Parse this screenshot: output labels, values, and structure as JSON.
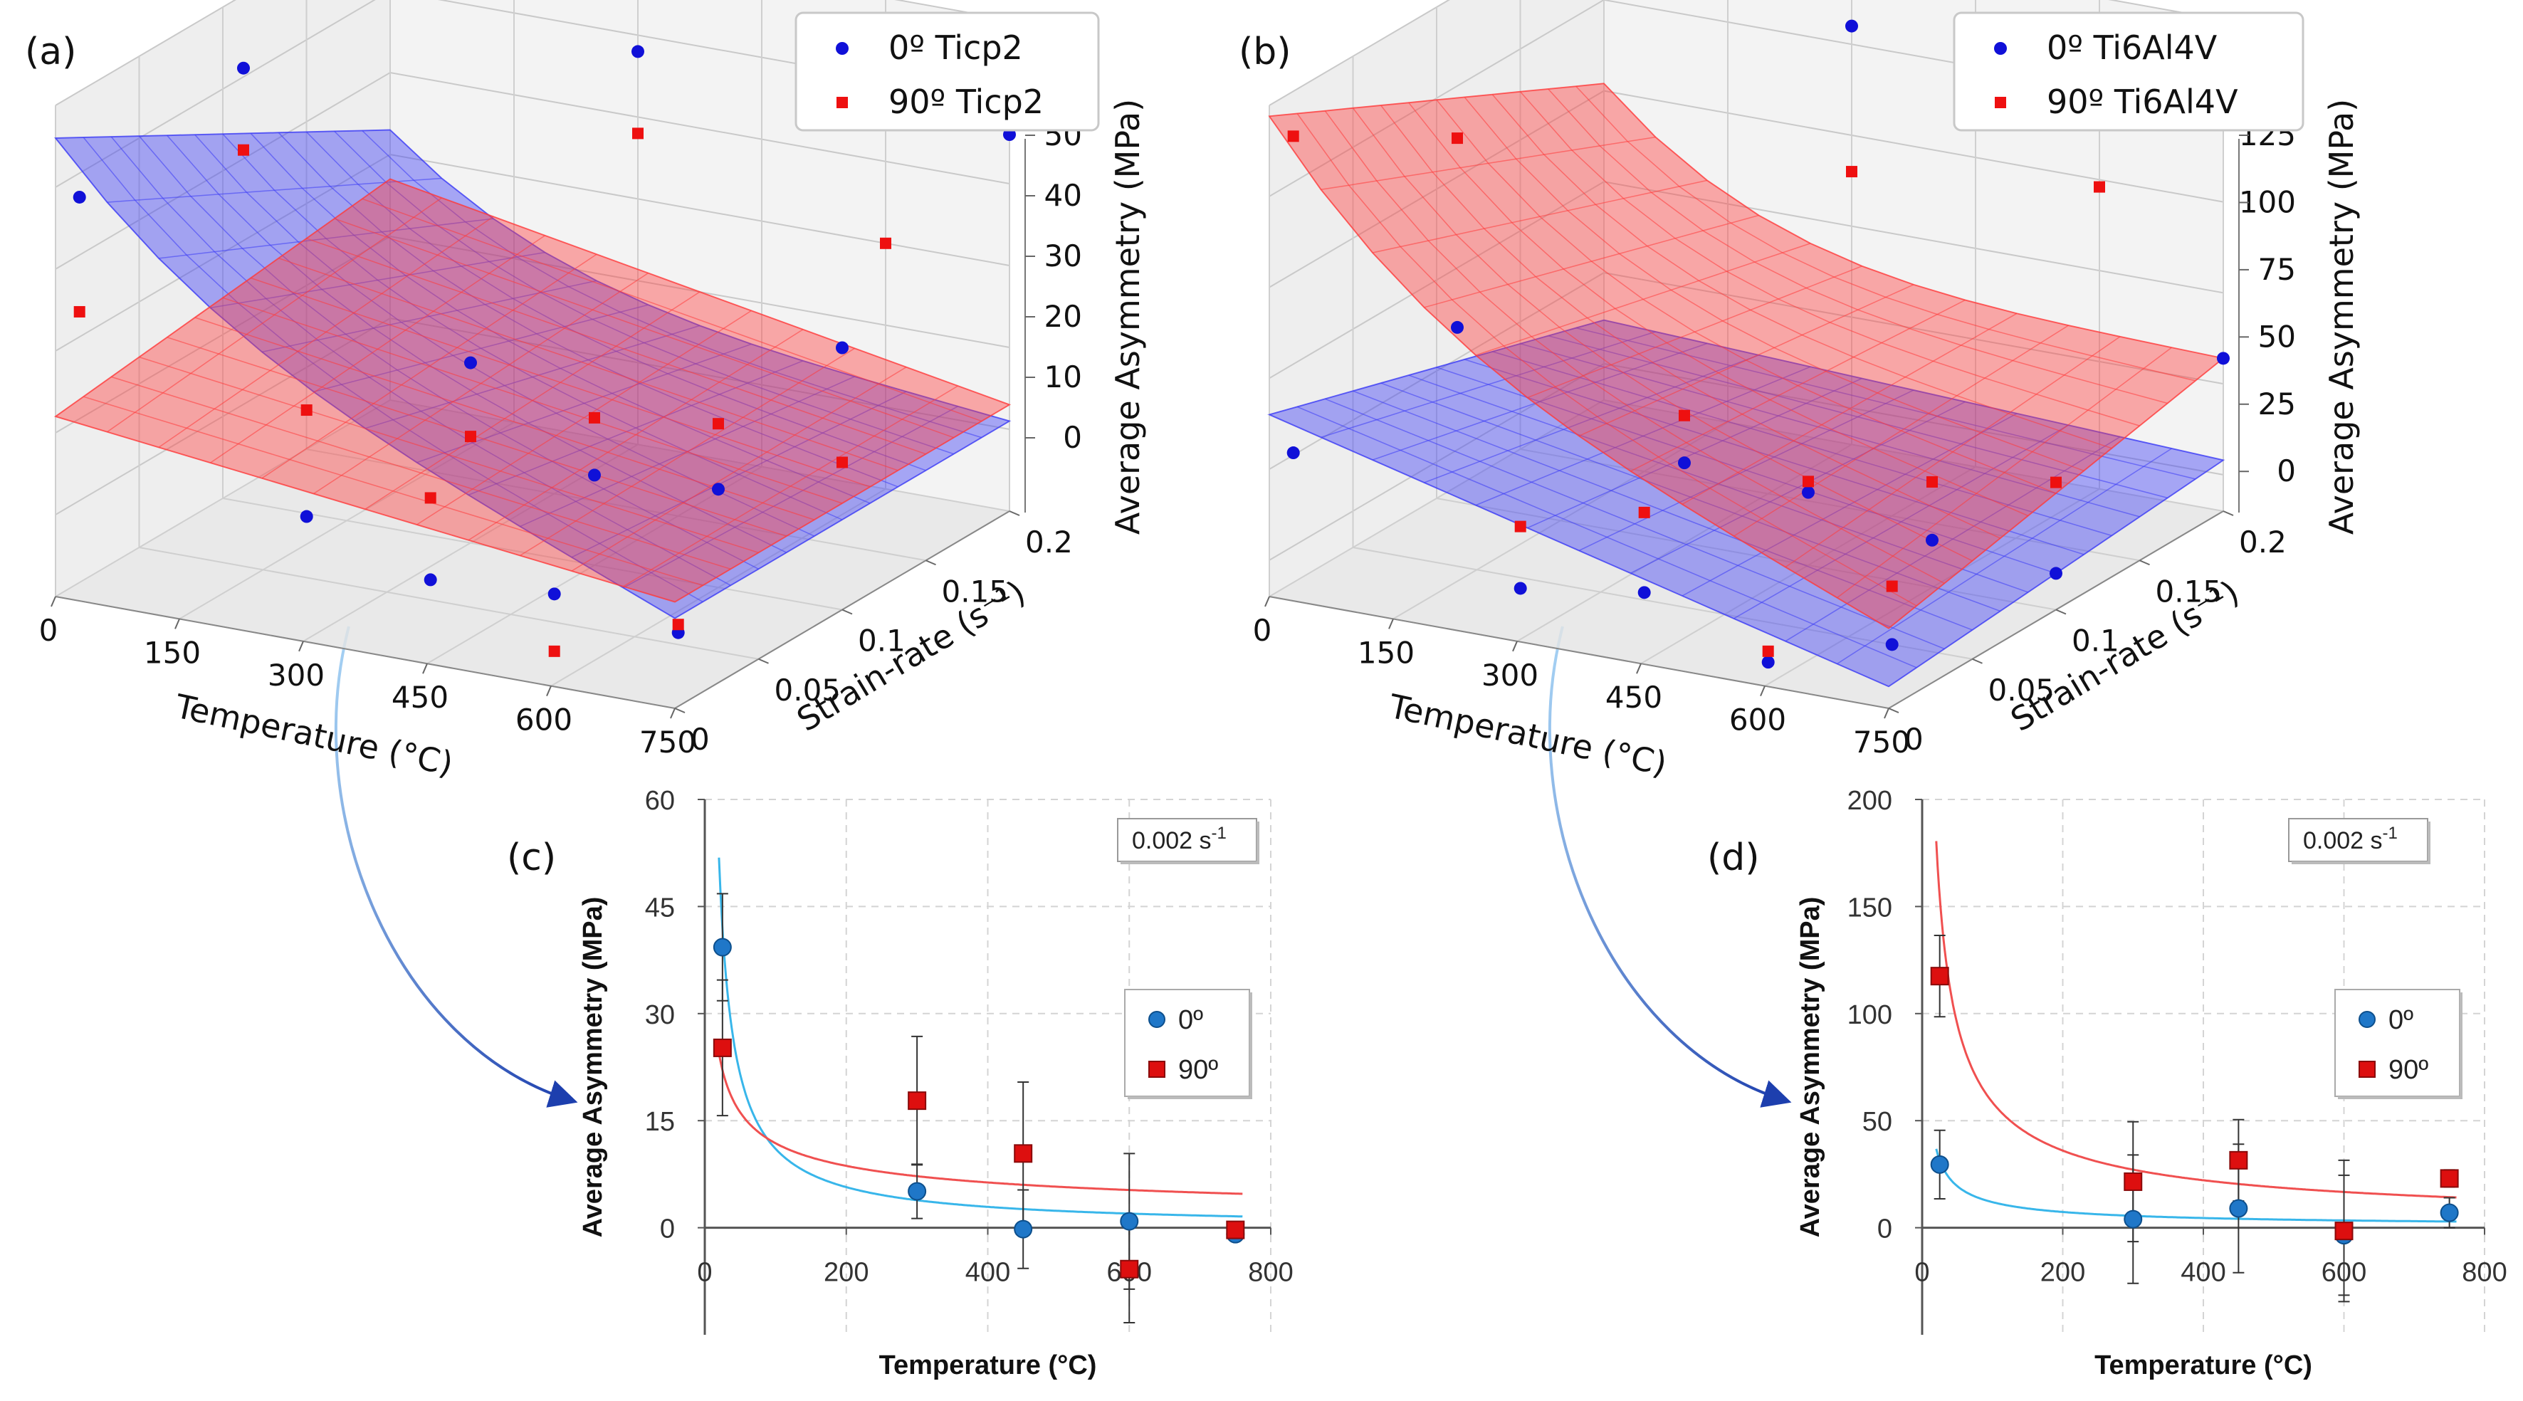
{
  "panels": {
    "a": {
      "letter": "(a)"
    },
    "b": {
      "letter": "(b)"
    },
    "c": {
      "letter": "(c)"
    },
    "d": {
      "letter": "(d)"
    }
  },
  "chart_data": [
    {
      "id": "a",
      "type": "scatter",
      "subtype": "3d surface with scatter points",
      "title": "",
      "xlabel": "Temperature (°C)",
      "ylabel": "Strain-rate (s⁻¹)",
      "zlabel": "Average Asymmetry (MPa)",
      "xticks": [
        "0",
        "150",
        "300",
        "450",
        "600",
        "750"
      ],
      "yticks": [
        "0",
        "0.05",
        "0.1",
        "0.15",
        "0.2"
      ],
      "zticks": [
        "0",
        "10",
        "20",
        "30",
        "40",
        "50"
      ],
      "xlim": [
        0,
        750
      ],
      "ylim": [
        0,
        0.2
      ],
      "zlim": [
        -10,
        50
      ],
      "legend": {
        "position": "top-right",
        "entries": [
          "0º Ticp2",
          "90º Ticp2"
        ]
      },
      "series": [
        {
          "name": "0º Ticp2",
          "color": "#1010d8",
          "marker": "circle",
          "points": [
            [
              25,
              0.002,
              39
            ],
            [
              300,
              0.002,
              5
            ],
            [
              450,
              0.002,
              0
            ],
            [
              600,
              0.002,
              1
            ],
            [
              750,
              0.002,
              -1
            ],
            [
              25,
              0.1,
              43
            ],
            [
              300,
              0.1,
              12
            ],
            [
              450,
              0.1,
              1
            ],
            [
              600,
              0.1,
              2
            ],
            [
              750,
              0.1,
              22
            ],
            [
              300,
              0.2,
              38
            ],
            [
              750,
              0.2,
              36
            ]
          ]
        },
        {
          "name": "90º Ticp2",
          "color": "#ee1010",
          "marker": "square",
          "points": [
            [
              25,
              0.002,
              25
            ],
            [
              300,
              0.002,
              18
            ],
            [
              450,
              0.002,
              10
            ],
            [
              600,
              0.002,
              -6
            ],
            [
              750,
              0.002,
              0
            ],
            [
              25,
              0.1,
              33
            ],
            [
              300,
              0.1,
              3
            ],
            [
              450,
              0.1,
              8
            ],
            [
              600,
              0.1,
              10
            ],
            [
              750,
              0.1,
              8
            ],
            [
              300,
              0.2,
              28
            ],
            [
              600,
              0.2,
              20
            ],
            [
              750,
              0.2,
              49
            ]
          ]
        }
      ]
    },
    {
      "id": "b",
      "type": "scatter",
      "subtype": "3d surface with scatter points",
      "title": "",
      "xlabel": "Temperature (°C)",
      "ylabel": "Strain-rate (s⁻¹)",
      "zlabel": "Average Asymmetry (MPa)",
      "xticks": [
        "0",
        "150",
        "300",
        "450",
        "600",
        "750"
      ],
      "yticks": [
        "0",
        "0.05",
        "0.1",
        "0.15",
        "0.2"
      ],
      "zticks": [
        "0",
        "25",
        "50",
        "75",
        "100",
        "125"
      ],
      "xlim": [
        0,
        750
      ],
      "ylim": [
        0,
        0.2
      ],
      "zlim": [
        -10,
        125
      ],
      "legend": {
        "position": "top-right",
        "entries": [
          "0º Ti6Al4V",
          "90º Ti6Al4V"
        ]
      },
      "series": [
        {
          "name": "0º Ti6Al4V",
          "color": "#1010d8",
          "marker": "circle",
          "points": [
            [
              25,
              0.002,
              30
            ],
            [
              300,
              0.002,
              4
            ],
            [
              450,
              0.002,
              9
            ],
            [
              600,
              0.002,
              -4
            ],
            [
              750,
              0.002,
              7
            ],
            [
              25,
              0.1,
              38
            ],
            [
              300,
              0.1,
              12
            ],
            [
              450,
              0.1,
              10
            ],
            [
              600,
              0.1,
              3
            ],
            [
              750,
              0.1,
              0
            ],
            [
              300,
              0.2,
              105
            ],
            [
              750,
              0.2,
              32
            ]
          ]
        },
        {
          "name": "90º Ti6Al4V",
          "color": "#ee1010",
          "marker": "square",
          "points": [
            [
              25,
              0.002,
              117
            ],
            [
              300,
              0.002,
              21
            ],
            [
              450,
              0.002,
              31
            ],
            [
              600,
              0.002,
              -1
            ],
            [
              750,
              0.002,
              23
            ],
            [
              25,
              0.1,
              90
            ],
            [
              300,
              0.1,
              25
            ],
            [
              450,
              0.1,
              13
            ],
            [
              600,
              0.1,
              19
            ],
            [
              750,
              0.1,
              25
            ],
            [
              300,
              0.2,
              65
            ],
            [
              600,
              0.2,
              73
            ],
            [
              750,
              0.2,
              112
            ]
          ]
        }
      ]
    },
    {
      "id": "c",
      "type": "scatter",
      "title": "",
      "annotation": "0.002 s",
      "annotation_sup": "-1",
      "xlabel": "Temperature (°C)",
      "ylabel": "Average Asymmetry (MPa)",
      "xlim": [
        0,
        800
      ],
      "ylim": [
        -15,
        60
      ],
      "xticks": [
        0,
        200,
        400,
        600,
        800
      ],
      "yticks": [
        0,
        15,
        30,
        45,
        60
      ],
      "grid": true,
      "legend": {
        "position": "center-right",
        "entries": [
          "0º",
          "90º"
        ]
      },
      "series": [
        {
          "name": "0º",
          "color": "#1f77c8",
          "marker": "circle",
          "x": [
            25,
            300,
            450,
            600,
            750
          ],
          "y": [
            39.3,
            5.1,
            -0.2,
            0.9,
            -0.9
          ],
          "err": [
            7.5,
            3.8,
            5.5,
            9.5,
            0.8
          ]
        },
        {
          "name": "90º",
          "color": "#dd0f0f",
          "marker": "square",
          "x": [
            25,
            300,
            450,
            600,
            750
          ],
          "y": [
            25.2,
            17.8,
            10.4,
            -5.8,
            -0.3
          ],
          "err": [
            9.5,
            9.0,
            10.0,
            7.5,
            1.0
          ]
        }
      ],
      "fits": [
        {
          "series": "0º",
          "color": "#38b6ea",
          "model": "power",
          "a": 920,
          "b": -0.96,
          "x_range": [
            20,
            760
          ]
        },
        {
          "series": "90º",
          "color": "#f05050",
          "model": "power",
          "a": 94,
          "b": -0.45,
          "x_range": [
            20,
            760
          ]
        }
      ]
    },
    {
      "id": "d",
      "type": "scatter",
      "title": "",
      "annotation": "0.002 s",
      "annotation_sup": "-1",
      "xlabel": "Temperature (°C)",
      "ylabel": "Average Asymmetry (MPa)",
      "xlim": [
        0,
        800
      ],
      "ylim": [
        -50,
        200
      ],
      "xticks": [
        0,
        200,
        400,
        600,
        800
      ],
      "yticks": [
        0,
        50,
        100,
        150,
        200
      ],
      "grid": true,
      "legend": {
        "position": "center-right",
        "entries": [
          "0º",
          "90º"
        ]
      },
      "series": [
        {
          "name": "0º",
          "color": "#1f77c8",
          "marker": "circle",
          "x": [
            25,
            300,
            450,
            600,
            750
          ],
          "y": [
            29.5,
            4.0,
            9.0,
            -3.5,
            7.0
          ],
          "err": [
            16,
            30,
            30,
            28,
            7
          ]
        },
        {
          "name": "90º",
          "color": "#dd0f0f",
          "marker": "square",
          "x": [
            25,
            300,
            450,
            600,
            750
          ],
          "y": [
            117.5,
            21.5,
            31.5,
            -1.5,
            23.0
          ],
          "err": [
            19,
            28,
            19,
            33,
            4
          ]
        }
      ],
      "fits": [
        {
          "series": "0º",
          "color": "#38b6ea",
          "model": "power",
          "a": 300,
          "b": -0.7,
          "x_range": [
            20,
            760
          ]
        },
        {
          "series": "90º",
          "color": "#f05050",
          "model": "power",
          "a": 1470,
          "b": -0.7,
          "x_range": [
            20,
            760
          ]
        }
      ]
    }
  ]
}
